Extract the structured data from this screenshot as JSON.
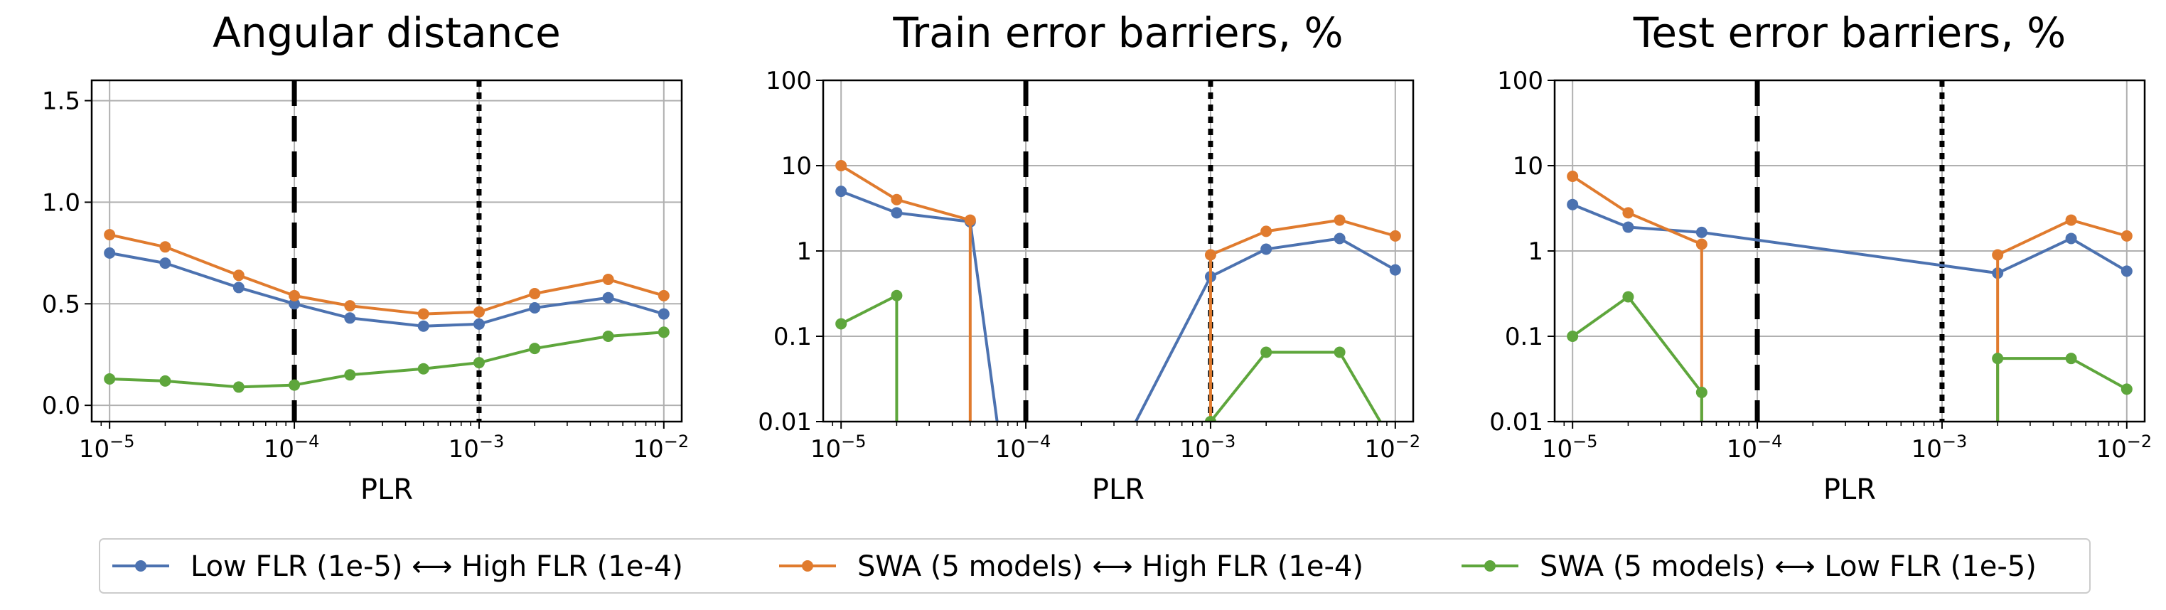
{
  "colors": {
    "blue": "#4c72b0",
    "orange": "#e07b2e",
    "green": "#5ea63c",
    "grid": "#b0b0b0",
    "vline": "#000000"
  },
  "legend": [
    {
      "label": "Low FLR (1e-5) ⟷ High FLR (1e-4)",
      "color": "#4c72b0"
    },
    {
      "label": "SWA (5 models) ⟷ High FLR (1e-4)",
      "color": "#e07b2e"
    },
    {
      "label": "SWA (5 models) ⟷ Low FLR (1e-5)",
      "color": "#5ea63c"
    }
  ],
  "chart_data": [
    {
      "type": "line",
      "title": "Angular distance",
      "xlabel": "PLR",
      "xscale": "log",
      "xlim": [
        8e-06,
        0.0125
      ],
      "xticks": [
        {
          "value": 1e-05,
          "base": "10",
          "exp": "−5"
        },
        {
          "value": 0.0001,
          "base": "10",
          "exp": "−4"
        },
        {
          "value": 0.001,
          "base": "10",
          "exp": "−3"
        },
        {
          "value": 0.01,
          "base": "10",
          "exp": "−2"
        }
      ],
      "yscale": "linear",
      "ylim": [
        -0.08,
        1.6
      ],
      "yticks": [
        {
          "value": 0,
          "label": "0.0"
        },
        {
          "value": 0.5,
          "label": "0.5"
        },
        {
          "value": 1.0,
          "label": "1.0"
        },
        {
          "value": 1.5,
          "label": "1.5"
        }
      ],
      "vlines": [
        {
          "x": 0.0001,
          "style": "dashed"
        },
        {
          "x": 0.001,
          "style": "dotted"
        }
      ],
      "series": [
        {
          "name": "Low FLR (1e-5) ⟷ High FLR (1e-4)",
          "color": "blue",
          "x": [
            1e-05,
            2e-05,
            5e-05,
            0.0001,
            0.0002,
            0.0005,
            0.001,
            0.002,
            0.005,
            0.01
          ],
          "y": [
            0.75,
            0.7,
            0.58,
            0.5,
            0.43,
            0.39,
            0.4,
            0.48,
            0.53,
            0.45
          ]
        },
        {
          "name": "SWA (5 models) ⟷ High FLR (1e-4)",
          "color": "orange",
          "x": [
            1e-05,
            2e-05,
            5e-05,
            0.0001,
            0.0002,
            0.0005,
            0.001,
            0.002,
            0.005,
            0.01
          ],
          "y": [
            0.84,
            0.78,
            0.64,
            0.54,
            0.49,
            0.45,
            0.46,
            0.55,
            0.62,
            0.54
          ]
        },
        {
          "name": "SWA (5 models) ⟷ Low FLR (1e-5)",
          "color": "green",
          "x": [
            1e-05,
            2e-05,
            5e-05,
            0.0001,
            0.0002,
            0.0005,
            0.001,
            0.002,
            0.005,
            0.01
          ],
          "y": [
            0.13,
            0.12,
            0.09,
            0.1,
            0.15,
            0.18,
            0.21,
            0.28,
            0.34,
            0.36
          ]
        }
      ]
    },
    {
      "type": "line",
      "title": "Train error barriers, %",
      "xlabel": "PLR",
      "xscale": "log",
      "xlim": [
        8e-06,
        0.0125
      ],
      "xticks": [
        {
          "value": 1e-05,
          "base": "10",
          "exp": "−5"
        },
        {
          "value": 0.0001,
          "base": "10",
          "exp": "−4"
        },
        {
          "value": 0.001,
          "base": "10",
          "exp": "−3"
        },
        {
          "value": 0.01,
          "base": "10",
          "exp": "−2"
        }
      ],
      "yscale": "log",
      "ylim": [
        0.01,
        100
      ],
      "yticks": [
        {
          "value": 0.01,
          "label": "0.01"
        },
        {
          "value": 0.1,
          "label": "0.1"
        },
        {
          "value": 1,
          "label": "1"
        },
        {
          "value": 10,
          "label": "10"
        },
        {
          "value": 100,
          "label": "100"
        }
      ],
      "vlines": [
        {
          "x": 0.0001,
          "style": "dashed"
        },
        {
          "x": 0.001,
          "style": "dotted"
        }
      ],
      "series": [
        {
          "name": "Low FLR (1e-5) ⟷ High FLR (1e-4)",
          "color": "blue",
          "x": [
            1e-05,
            2e-05,
            5e-05,
            0.0001,
            0.001,
            0.002,
            0.005,
            0.01
          ],
          "y": [
            5.0,
            2.8,
            2.2,
            0,
            0.5,
            1.05,
            1.4,
            0.6
          ]
        },
        {
          "name": "SWA (5 models) ⟷ High FLR (1e-4)",
          "color": "orange",
          "x": [
            1e-05,
            2e-05,
            5e-05,
            5e-05,
            0.001,
            0.001,
            0.002,
            0.005,
            0.01
          ],
          "y": [
            10.0,
            4.0,
            2.3,
            0,
            0,
            0.9,
            1.7,
            2.3,
            1.5
          ]
        },
        {
          "name": "SWA (5 models) ⟷ Low FLR (1e-5)",
          "color": "green",
          "x": [
            1e-05,
            2e-05,
            2e-05,
            0.001,
            0.002,
            0.005,
            0.01
          ],
          "y": [
            0.14,
            0.3,
            0,
            0.01,
            0.065,
            0.065,
            0.005
          ]
        }
      ]
    },
    {
      "type": "line",
      "title": "Test error barriers, %",
      "xlabel": "PLR",
      "xscale": "log",
      "xlim": [
        8e-06,
        0.0125
      ],
      "xticks": [
        {
          "value": 1e-05,
          "base": "10",
          "exp": "−5"
        },
        {
          "value": 0.0001,
          "base": "10",
          "exp": "−4"
        },
        {
          "value": 0.001,
          "base": "10",
          "exp": "−3"
        },
        {
          "value": 0.01,
          "base": "10",
          "exp": "−2"
        }
      ],
      "yscale": "log",
      "ylim": [
        0.01,
        100
      ],
      "yticks": [
        {
          "value": 0.01,
          "label": "0.01"
        },
        {
          "value": 0.1,
          "label": "0.1"
        },
        {
          "value": 1,
          "label": "1"
        },
        {
          "value": 10,
          "label": "10"
        },
        {
          "value": 100,
          "label": "100"
        }
      ],
      "vlines": [
        {
          "x": 0.0001,
          "style": "dashed"
        },
        {
          "x": 0.001,
          "style": "dotted"
        }
      ],
      "series": [
        {
          "name": "Low FLR (1e-5) ⟷ High FLR (1e-4)",
          "color": "blue",
          "x": [
            1e-05,
            2e-05,
            5e-05,
            0.002,
            0.005,
            0.01
          ],
          "y": [
            3.5,
            1.9,
            1.65,
            0.55,
            1.4,
            0.58
          ]
        },
        {
          "name": "SWA (5 models) ⟷ High FLR (1e-4)",
          "color": "orange",
          "x": [
            1e-05,
            2e-05,
            5e-05,
            5e-05,
            0.002,
            0.002,
            0.005,
            0.01
          ],
          "y": [
            7.5,
            2.8,
            1.2,
            0,
            0,
            0.9,
            2.3,
            1.5
          ]
        },
        {
          "name": "SWA (5 models) ⟷ Low FLR (1e-5)",
          "color": "green",
          "x": [
            1e-05,
            2e-05,
            5e-05,
            5e-05,
            0.002,
            0.002,
            0.005,
            0.01
          ],
          "y": [
            0.1,
            0.29,
            0.022,
            0,
            0,
            0.055,
            0.055,
            0.024
          ]
        }
      ]
    }
  ]
}
